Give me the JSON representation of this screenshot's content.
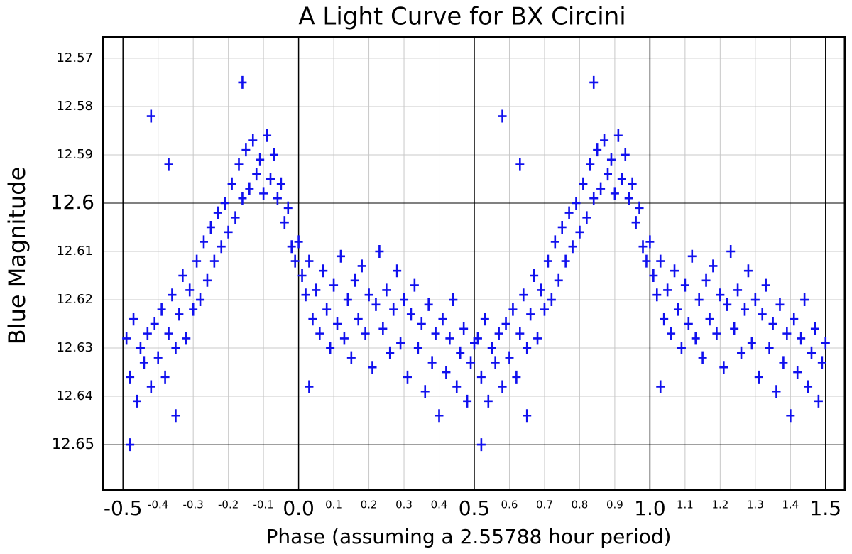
{
  "chart_data": {
    "type": "scatter",
    "title": "A Light Curve for BX Circini",
    "xlabel": "Phase (assuming a 2.55788 hour period)",
    "ylabel": "Blue Magnitude",
    "xlim": [
      -0.557,
      1.555
    ],
    "ylim": [
      12.6594,
      12.5656
    ],
    "xticks_major": [
      -0.5,
      {
        "value": 0,
        "label": "0.0"
      },
      0.5,
      {
        "value": 1,
        "label": "1.0"
      },
      1.5
    ],
    "xticks_minor": [
      -0.4,
      -0.3,
      -0.2,
      -0.1,
      0.1,
      0.2,
      0.3,
      0.4,
      0.6,
      0.7,
      0.8,
      0.9,
      1.1,
      1.2,
      1.3,
      1.4
    ],
    "yticks_major": [
      12.6,
      12.65
    ],
    "yticks_minor": [
      12.57,
      12.58,
      12.59,
      12.61,
      12.62,
      12.63,
      12.64
    ],
    "grid": true,
    "color": "#1010ee",
    "title_color": "#1010ee",
    "x": [
      -0.49,
      -0.48,
      -0.47,
      -0.46,
      -0.45,
      -0.44,
      -0.43,
      -0.42,
      -0.41,
      -0.4,
      -0.39,
      -0.38,
      -0.37,
      -0.36,
      -0.35,
      -0.34,
      -0.33,
      -0.32,
      -0.31,
      -0.3,
      -0.29,
      -0.28,
      -0.27,
      -0.26,
      -0.25,
      -0.24,
      -0.23,
      -0.22,
      -0.21,
      -0.2,
      -0.19,
      -0.18,
      -0.17,
      -0.16,
      -0.15,
      -0.14,
      -0.13,
      -0.12,
      -0.11,
      -0.1,
      -0.09,
      -0.08,
      -0.07,
      -0.06,
      -0.05,
      -0.04,
      -0.03,
      -0.02,
      -0.01,
      0,
      0.01,
      0.02,
      0.03,
      0.04,
      0.05,
      0.06,
      0.07,
      0.08,
      0.09,
      0.1,
      0.11,
      0.12,
      0.13,
      0.14,
      0.15,
      0.16,
      0.17,
      0.18,
      0.19,
      0.2,
      0.21,
      0.22,
      0.23,
      0.24,
      0.25,
      0.26,
      0.27,
      0.28,
      0.29,
      0.3,
      0.31,
      0.32,
      0.33,
      0.34,
      0.35,
      0.36,
      0.37,
      0.38,
      0.39,
      0.4,
      0.41,
      0.42,
      0.43,
      0.44,
      0.45,
      0.46,
      0.47,
      0.48,
      0.49,
      0.5,
      -0.42,
      -0.37,
      -0.16,
      -0.48,
      -0.35,
      0.03,
      0.51,
      0.52,
      0.53,
      0.54,
      0.55,
      0.56,
      0.57,
      0.58,
      0.59,
      0.6,
      0.61,
      0.62,
      0.63,
      0.64,
      0.65,
      0.66,
      0.67,
      0.68,
      0.69,
      0.7,
      0.71,
      0.72,
      0.73,
      0.74,
      0.75,
      0.76,
      0.77,
      0.78,
      0.79,
      0.8,
      0.81,
      0.82,
      0.83,
      0.84,
      0.85,
      0.86,
      0.87,
      0.88,
      0.89,
      0.9,
      0.91,
      0.92,
      0.93,
      0.94,
      0.95,
      0.96,
      0.97,
      0.98,
      0.99,
      1,
      1.01,
      1.02,
      1.03,
      1.04,
      1.05,
      1.06,
      1.07,
      1.08,
      1.09,
      1.1,
      1.11,
      1.12,
      1.13,
      1.14,
      1.15,
      1.16,
      1.17,
      1.18,
      1.19,
      1.2,
      1.21,
      1.22,
      1.23,
      1.24,
      1.25,
      1.26,
      1.27,
      1.28,
      1.29,
      1.3,
      1.31,
      1.32,
      1.33,
      1.34,
      1.35,
      1.36,
      1.37,
      1.38,
      1.39,
      1.4,
      1.41,
      1.42,
      1.43,
      1.44,
      1.45,
      1.46,
      1.47,
      1.48,
      1.49,
      1.5,
      0.58,
      0.63,
      0.84,
      0.52,
      0.65,
      1.03
    ],
    "values": [
      12.628,
      12.636,
      12.624,
      12.641,
      12.63,
      12.633,
      12.627,
      12.638,
      12.625,
      12.632,
      12.622,
      12.636,
      12.627,
      12.619,
      12.63,
      12.623,
      12.615,
      12.628,
      12.618,
      12.622,
      12.612,
      12.62,
      12.608,
      12.616,
      12.605,
      12.612,
      12.602,
      12.609,
      12.6,
      12.606,
      12.596,
      12.603,
      12.592,
      12.599,
      12.589,
      12.597,
      12.587,
      12.594,
      12.591,
      12.598,
      12.586,
      12.595,
      12.59,
      12.599,
      12.596,
      12.604,
      12.601,
      12.609,
      12.612,
      12.608,
      12.615,
      12.619,
      12.612,
      12.624,
      12.618,
      12.627,
      12.614,
      12.622,
      12.63,
      12.617,
      12.625,
      12.611,
      12.628,
      12.62,
      12.632,
      12.616,
      12.624,
      12.613,
      12.627,
      12.619,
      12.634,
      12.621,
      12.61,
      12.626,
      12.618,
      12.631,
      12.622,
      12.614,
      12.629,
      12.62,
      12.636,
      12.623,
      12.617,
      12.63,
      12.625,
      12.639,
      12.621,
      12.633,
      12.627,
      12.644,
      12.624,
      12.635,
      12.628,
      12.62,
      12.638,
      12.631,
      12.626,
      12.641,
      12.633,
      12.629,
      12.582,
      12.592,
      12.575,
      12.65,
      12.644,
      12.638,
      12.628,
      12.636,
      12.624,
      12.641,
      12.63,
      12.633,
      12.627,
      12.638,
      12.625,
      12.632,
      12.622,
      12.636,
      12.627,
      12.619,
      12.63,
      12.623,
      12.615,
      12.628,
      12.618,
      12.622,
      12.612,
      12.62,
      12.608,
      12.616,
      12.605,
      12.612,
      12.602,
      12.609,
      12.6,
      12.606,
      12.596,
      12.603,
      12.592,
      12.599,
      12.589,
      12.597,
      12.587,
      12.594,
      12.591,
      12.598,
      12.586,
      12.595,
      12.59,
      12.599,
      12.596,
      12.604,
      12.601,
      12.609,
      12.612,
      12.608,
      12.615,
      12.619,
      12.612,
      12.624,
      12.618,
      12.627,
      12.614,
      12.622,
      12.63,
      12.617,
      12.625,
      12.611,
      12.628,
      12.62,
      12.632,
      12.616,
      12.624,
      12.613,
      12.627,
      12.619,
      12.634,
      12.621,
      12.61,
      12.626,
      12.618,
      12.631,
      12.622,
      12.614,
      12.629,
      12.62,
      12.636,
      12.623,
      12.617,
      12.63,
      12.625,
      12.639,
      12.621,
      12.633,
      12.627,
      12.644,
      12.624,
      12.635,
      12.628,
      12.62,
      12.638,
      12.631,
      12.626,
      12.641,
      12.633,
      12.629,
      12.582,
      12.592,
      12.575,
      12.65,
      12.644,
      12.638
    ]
  }
}
